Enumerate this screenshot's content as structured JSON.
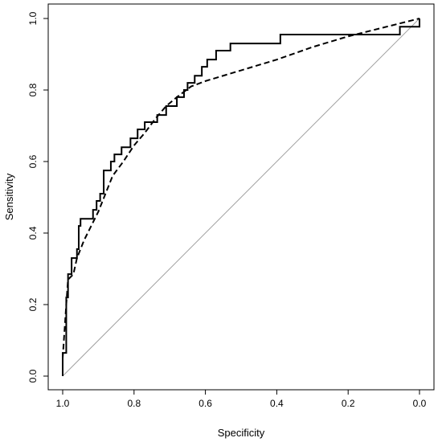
{
  "chart_data": {
    "type": "line",
    "xlabel": "Specificity",
    "ylabel": "Sensitivity",
    "xlim": [
      1.0,
      0.0
    ],
    "ylim": [
      0.0,
      1.0
    ],
    "x_reversed": true,
    "grid": false,
    "x_ticks": [
      "1.0",
      "0.8",
      "0.6",
      "0.4",
      "0.2",
      "0.0"
    ],
    "y_ticks": [
      "0.0",
      "0.2",
      "0.4",
      "0.6",
      "0.8",
      "1.0"
    ],
    "colors": {
      "series": "#000000",
      "reference": "#a0a0a0"
    },
    "series": [
      {
        "style": "solid-step",
        "points": [
          [
            1.0,
            0.0
          ],
          [
            1.0,
            0.065
          ],
          [
            0.99,
            0.065
          ],
          [
            0.99,
            0.22
          ],
          [
            0.985,
            0.22
          ],
          [
            0.985,
            0.285
          ],
          [
            0.975,
            0.285
          ],
          [
            0.975,
            0.33
          ],
          [
            0.96,
            0.33
          ],
          [
            0.96,
            0.355
          ],
          [
            0.955,
            0.355
          ],
          [
            0.955,
            0.42
          ],
          [
            0.95,
            0.42
          ],
          [
            0.95,
            0.44
          ],
          [
            0.915,
            0.44
          ],
          [
            0.915,
            0.465
          ],
          [
            0.905,
            0.465
          ],
          [
            0.905,
            0.49
          ],
          [
            0.895,
            0.49
          ],
          [
            0.895,
            0.51
          ],
          [
            0.885,
            0.51
          ],
          [
            0.885,
            0.575
          ],
          [
            0.865,
            0.575
          ],
          [
            0.865,
            0.6
          ],
          [
            0.855,
            0.6
          ],
          [
            0.855,
            0.62
          ],
          [
            0.835,
            0.62
          ],
          [
            0.835,
            0.64
          ],
          [
            0.81,
            0.64
          ],
          [
            0.81,
            0.665
          ],
          [
            0.79,
            0.665
          ],
          [
            0.79,
            0.69
          ],
          [
            0.77,
            0.69
          ],
          [
            0.77,
            0.71
          ],
          [
            0.735,
            0.71
          ],
          [
            0.735,
            0.73
          ],
          [
            0.71,
            0.73
          ],
          [
            0.71,
            0.755
          ],
          [
            0.68,
            0.755
          ],
          [
            0.68,
            0.78
          ],
          [
            0.66,
            0.78
          ],
          [
            0.66,
            0.8
          ],
          [
            0.65,
            0.8
          ],
          [
            0.65,
            0.82
          ],
          [
            0.63,
            0.82
          ],
          [
            0.63,
            0.84
          ],
          [
            0.61,
            0.84
          ],
          [
            0.61,
            0.865
          ],
          [
            0.595,
            0.865
          ],
          [
            0.595,
            0.885
          ],
          [
            0.57,
            0.885
          ],
          [
            0.57,
            0.91
          ],
          [
            0.53,
            0.91
          ],
          [
            0.53,
            0.93
          ],
          [
            0.39,
            0.93
          ],
          [
            0.39,
            0.955
          ],
          [
            0.055,
            0.955
          ],
          [
            0.055,
            0.977
          ],
          [
            0.0,
            0.977
          ],
          [
            0.0,
            1.0
          ]
        ]
      },
      {
        "style": "dashed",
        "points": [
          [
            1.0,
            0.05
          ],
          [
            0.99,
            0.2
          ],
          [
            0.985,
            0.27
          ],
          [
            0.97,
            0.285
          ],
          [
            0.96,
            0.33
          ],
          [
            0.94,
            0.38
          ],
          [
            0.92,
            0.42
          ],
          [
            0.9,
            0.46
          ],
          [
            0.88,
            0.51
          ],
          [
            0.86,
            0.56
          ],
          [
            0.83,
            0.6
          ],
          [
            0.8,
            0.645
          ],
          [
            0.77,
            0.68
          ],
          [
            0.74,
            0.72
          ],
          [
            0.71,
            0.755
          ],
          [
            0.68,
            0.78
          ],
          [
            0.64,
            0.81
          ],
          [
            0.6,
            0.825
          ],
          [
            0.5,
            0.855
          ],
          [
            0.4,
            0.885
          ],
          [
            0.3,
            0.92
          ],
          [
            0.2,
            0.95
          ],
          [
            0.1,
            0.975
          ],
          [
            0.0,
            1.0
          ]
        ]
      }
    ],
    "reference_line": {
      "from": [
        1.0,
        0.0
      ],
      "to": [
        0.0,
        1.0
      ]
    }
  }
}
